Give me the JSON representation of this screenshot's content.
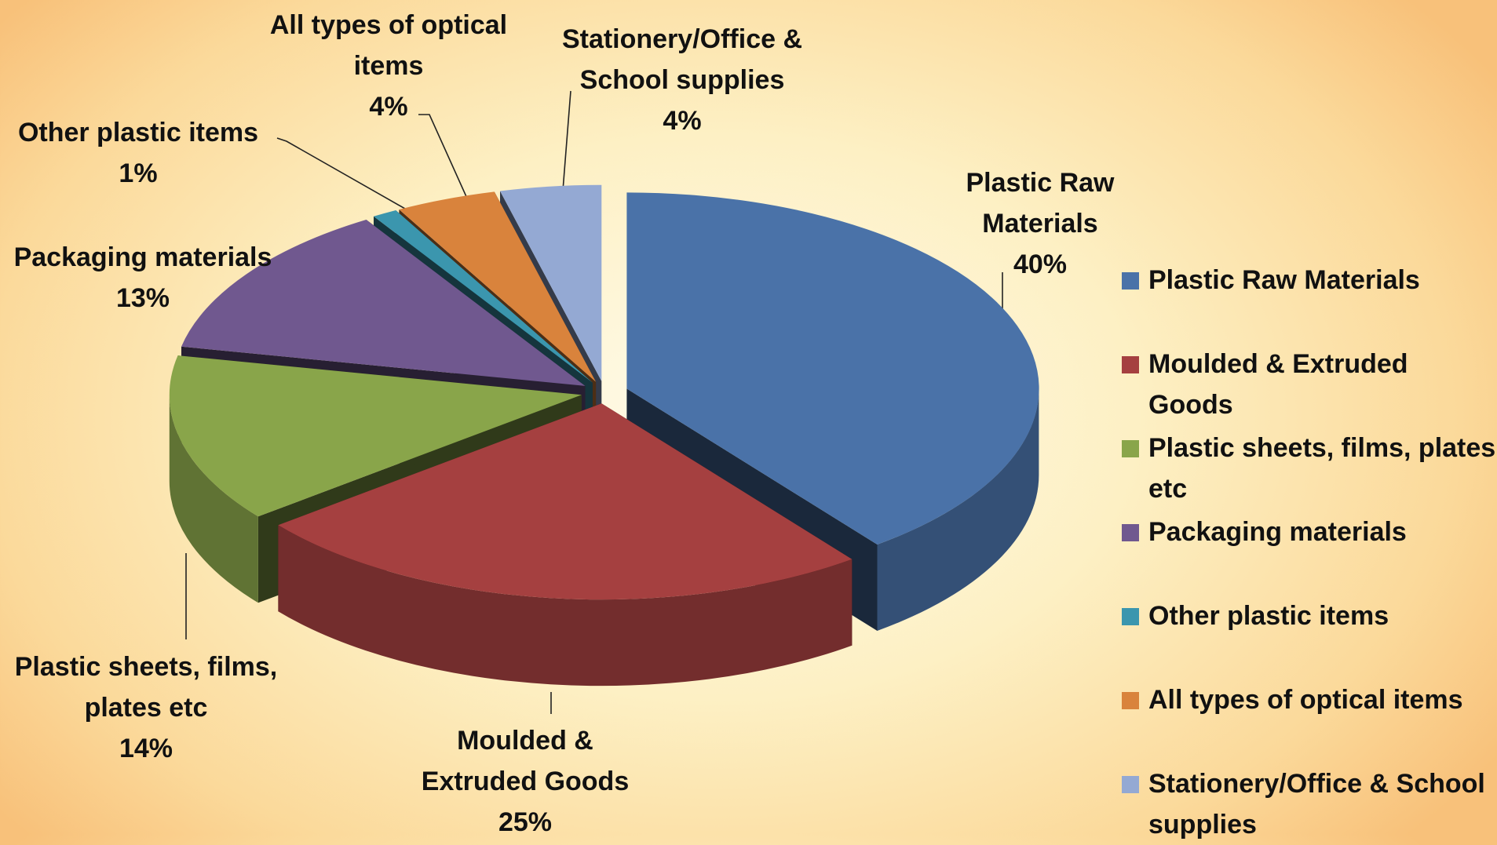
{
  "chart_data": {
    "type": "pie",
    "categories": [
      "Plastic Raw Materials",
      "Moulded & Extruded Goods",
      "Plastic sheets, films, plates etc",
      "Packaging materials",
      "Other plastic items",
      "All types of optical items",
      "Stationery/Office & School supplies"
    ],
    "values": [
      40,
      25,
      14,
      13,
      1,
      4,
      4
    ],
    "value_labels": [
      "40%",
      "25%",
      "14%",
      "13%",
      "1%",
      "4%",
      "4%"
    ],
    "colors": [
      "#4a72a8",
      "#a54040",
      "#89a54a",
      "#70588f",
      "#3b96ae",
      "#d9833c",
      "#94a9d3"
    ],
    "legend": "right"
  }
}
